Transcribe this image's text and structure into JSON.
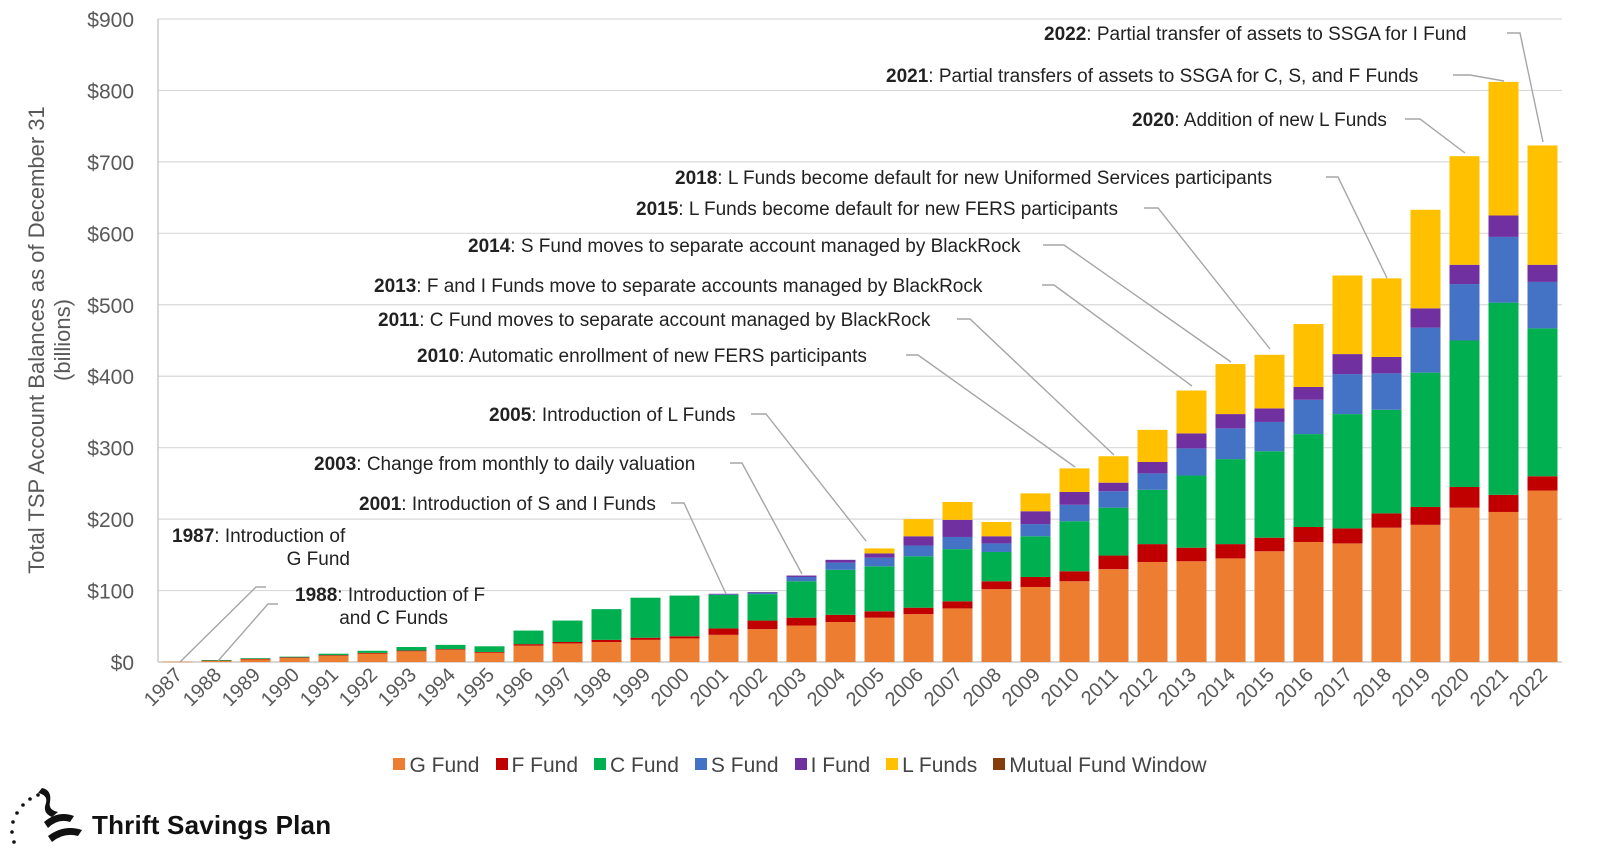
{
  "chart_data": {
    "type": "bar",
    "stacked": true,
    "ylabel": "Total TSP Account Balances as of December 31 (billions)",
    "ylabel_lines": [
      "Total TSP Account Balances as of December 31",
      "(billions)"
    ],
    "ylim": [
      0,
      900
    ],
    "yticks": [
      "$0",
      "$100",
      "$200",
      "$300",
      "$400",
      "$500",
      "$600",
      "$700",
      "$800",
      "$900"
    ],
    "grid": true,
    "legend_position": "bottom",
    "categories": [
      "1987",
      "1988",
      "1989",
      "1990",
      "1991",
      "1992",
      "1993",
      "1994",
      "1995",
      "1996",
      "1997",
      "1998",
      "1999",
      "2000",
      "2001",
      "2002",
      "2003",
      "2004",
      "2005",
      "2006",
      "2007",
      "2008",
      "2009",
      "2010",
      "2011",
      "2012",
      "2013",
      "2014",
      "2015",
      "2016",
      "2017",
      "2018",
      "2019",
      "2020",
      "2021",
      "2022"
    ],
    "series": [
      {
        "name": "G Fund",
        "color": "#ED7D31",
        "values": [
          0.5,
          2,
          4,
          6,
          9,
          12,
          15,
          17,
          13,
          23,
          26,
          28,
          31,
          33,
          38,
          46,
          51,
          56,
          62,
          67,
          75,
          102,
          105,
          113,
          130,
          140,
          141,
          145,
          155,
          168,
          166,
          188,
          192,
          216,
          210,
          240
        ]
      },
      {
        "name": "F Fund",
        "color": "#C00000",
        "values": [
          0,
          0.3,
          0.5,
          0.5,
          0.6,
          0.7,
          1,
          1,
          1,
          2,
          2,
          3,
          3,
          3,
          9,
          12,
          11,
          10,
          9,
          9,
          10,
          11,
          14,
          14,
          19,
          25,
          19,
          20,
          19,
          21,
          21,
          20,
          25,
          29,
          24,
          20
        ]
      },
      {
        "name": "C Fund",
        "color": "#00B050",
        "values": [
          0,
          0.3,
          1,
          1,
          2,
          3,
          5,
          6,
          8,
          19,
          30,
          43,
          56,
          57,
          47,
          37,
          51,
          63,
          63,
          72,
          73,
          41,
          57,
          70,
          67,
          76,
          101,
          119,
          121,
          130,
          160,
          145,
          188,
          205,
          269,
          207
        ]
      },
      {
        "name": "S Fund",
        "color": "#4472C4",
        "values": [
          0,
          0,
          0,
          0,
          0,
          0,
          0,
          0,
          0,
          0,
          0,
          0,
          0,
          0,
          1,
          2,
          6,
          10,
          12,
          15,
          17,
          12,
          17,
          23,
          23,
          23,
          38,
          43,
          41,
          48,
          56,
          51,
          63,
          79,
          92,
          65
        ]
      },
      {
        "name": "I Fund",
        "color": "#7030A0",
        "values": [
          0,
          0,
          0,
          0,
          0,
          0,
          0,
          0,
          0,
          0,
          0,
          0,
          0,
          0,
          0.5,
          1,
          2,
          4,
          6,
          13,
          24,
          10,
          18,
          18,
          12,
          16,
          21,
          20,
          19,
          18,
          28,
          23,
          27,
          27,
          30,
          24
        ]
      },
      {
        "name": "L Funds",
        "color": "#FFC000",
        "values": [
          0,
          0,
          0,
          0,
          0,
          0,
          0,
          0,
          0,
          0,
          0,
          0,
          0,
          0,
          0,
          0,
          0,
          0,
          7,
          24,
          25,
          20,
          25,
          33,
          37,
          45,
          60,
          70,
          75,
          88,
          110,
          110,
          138,
          152,
          187,
          167
        ]
      },
      {
        "name": "Mutual Fund Window",
        "color": "#843C0C",
        "values": [
          0,
          0,
          0,
          0,
          0,
          0,
          0,
          0,
          0,
          0,
          0,
          0,
          0,
          0,
          0,
          0,
          0,
          0,
          0,
          0,
          0,
          0,
          0,
          0,
          0,
          0,
          0,
          0,
          0,
          0,
          0,
          0,
          0,
          0,
          0,
          0
        ]
      }
    ],
    "annotations": [
      {
        "year": "1987",
        "bold": "1987",
        "lines": [
          ": Introduction of",
          "G Fund"
        ]
      },
      {
        "year": "1988",
        "bold": "1988",
        "lines": [
          ": Introduction of F",
          "and C Funds"
        ]
      },
      {
        "year": "2001",
        "bold": "2001",
        "lines": [
          ": Introduction of S and I Funds"
        ]
      },
      {
        "year": "2003",
        "bold": "2003",
        "lines": [
          ": Change from monthly to daily valuation"
        ]
      },
      {
        "year": "2005",
        "bold": "2005",
        "lines": [
          ": Introduction of L Funds"
        ]
      },
      {
        "year": "2010",
        "bold": "2010",
        "lines": [
          ": Automatic enrollment of new FERS participants"
        ]
      },
      {
        "year": "2011",
        "bold": "2011",
        "lines": [
          ": C Fund moves to separate account managed by BlackRock"
        ]
      },
      {
        "year": "2013",
        "bold": "2013",
        "lines": [
          ": F and I Funds move to separate accounts managed by BlackRock"
        ]
      },
      {
        "year": "2014",
        "bold": "2014",
        "lines": [
          ": S Fund moves to separate account managed by BlackRock"
        ]
      },
      {
        "year": "2015",
        "bold": "2015",
        "lines": [
          ": L Funds become default for new FERS participants"
        ]
      },
      {
        "year": "2018",
        "bold": "2018",
        "lines": [
          ": L Funds become default for new Uniformed Services participants"
        ]
      },
      {
        "year": "2020",
        "bold": "2020",
        "lines": [
          ": Addition of new L Funds"
        ]
      },
      {
        "year": "2021",
        "bold": "2021",
        "lines": [
          ": Partial transfers of assets to SSGA for C, S, and F Funds"
        ]
      },
      {
        "year": "2022",
        "bold": "2022",
        "lines": [
          ": Partial transfer of assets to SSGA for I Fund"
        ]
      }
    ]
  },
  "logo": {
    "text": "Thrift Savings Plan"
  }
}
